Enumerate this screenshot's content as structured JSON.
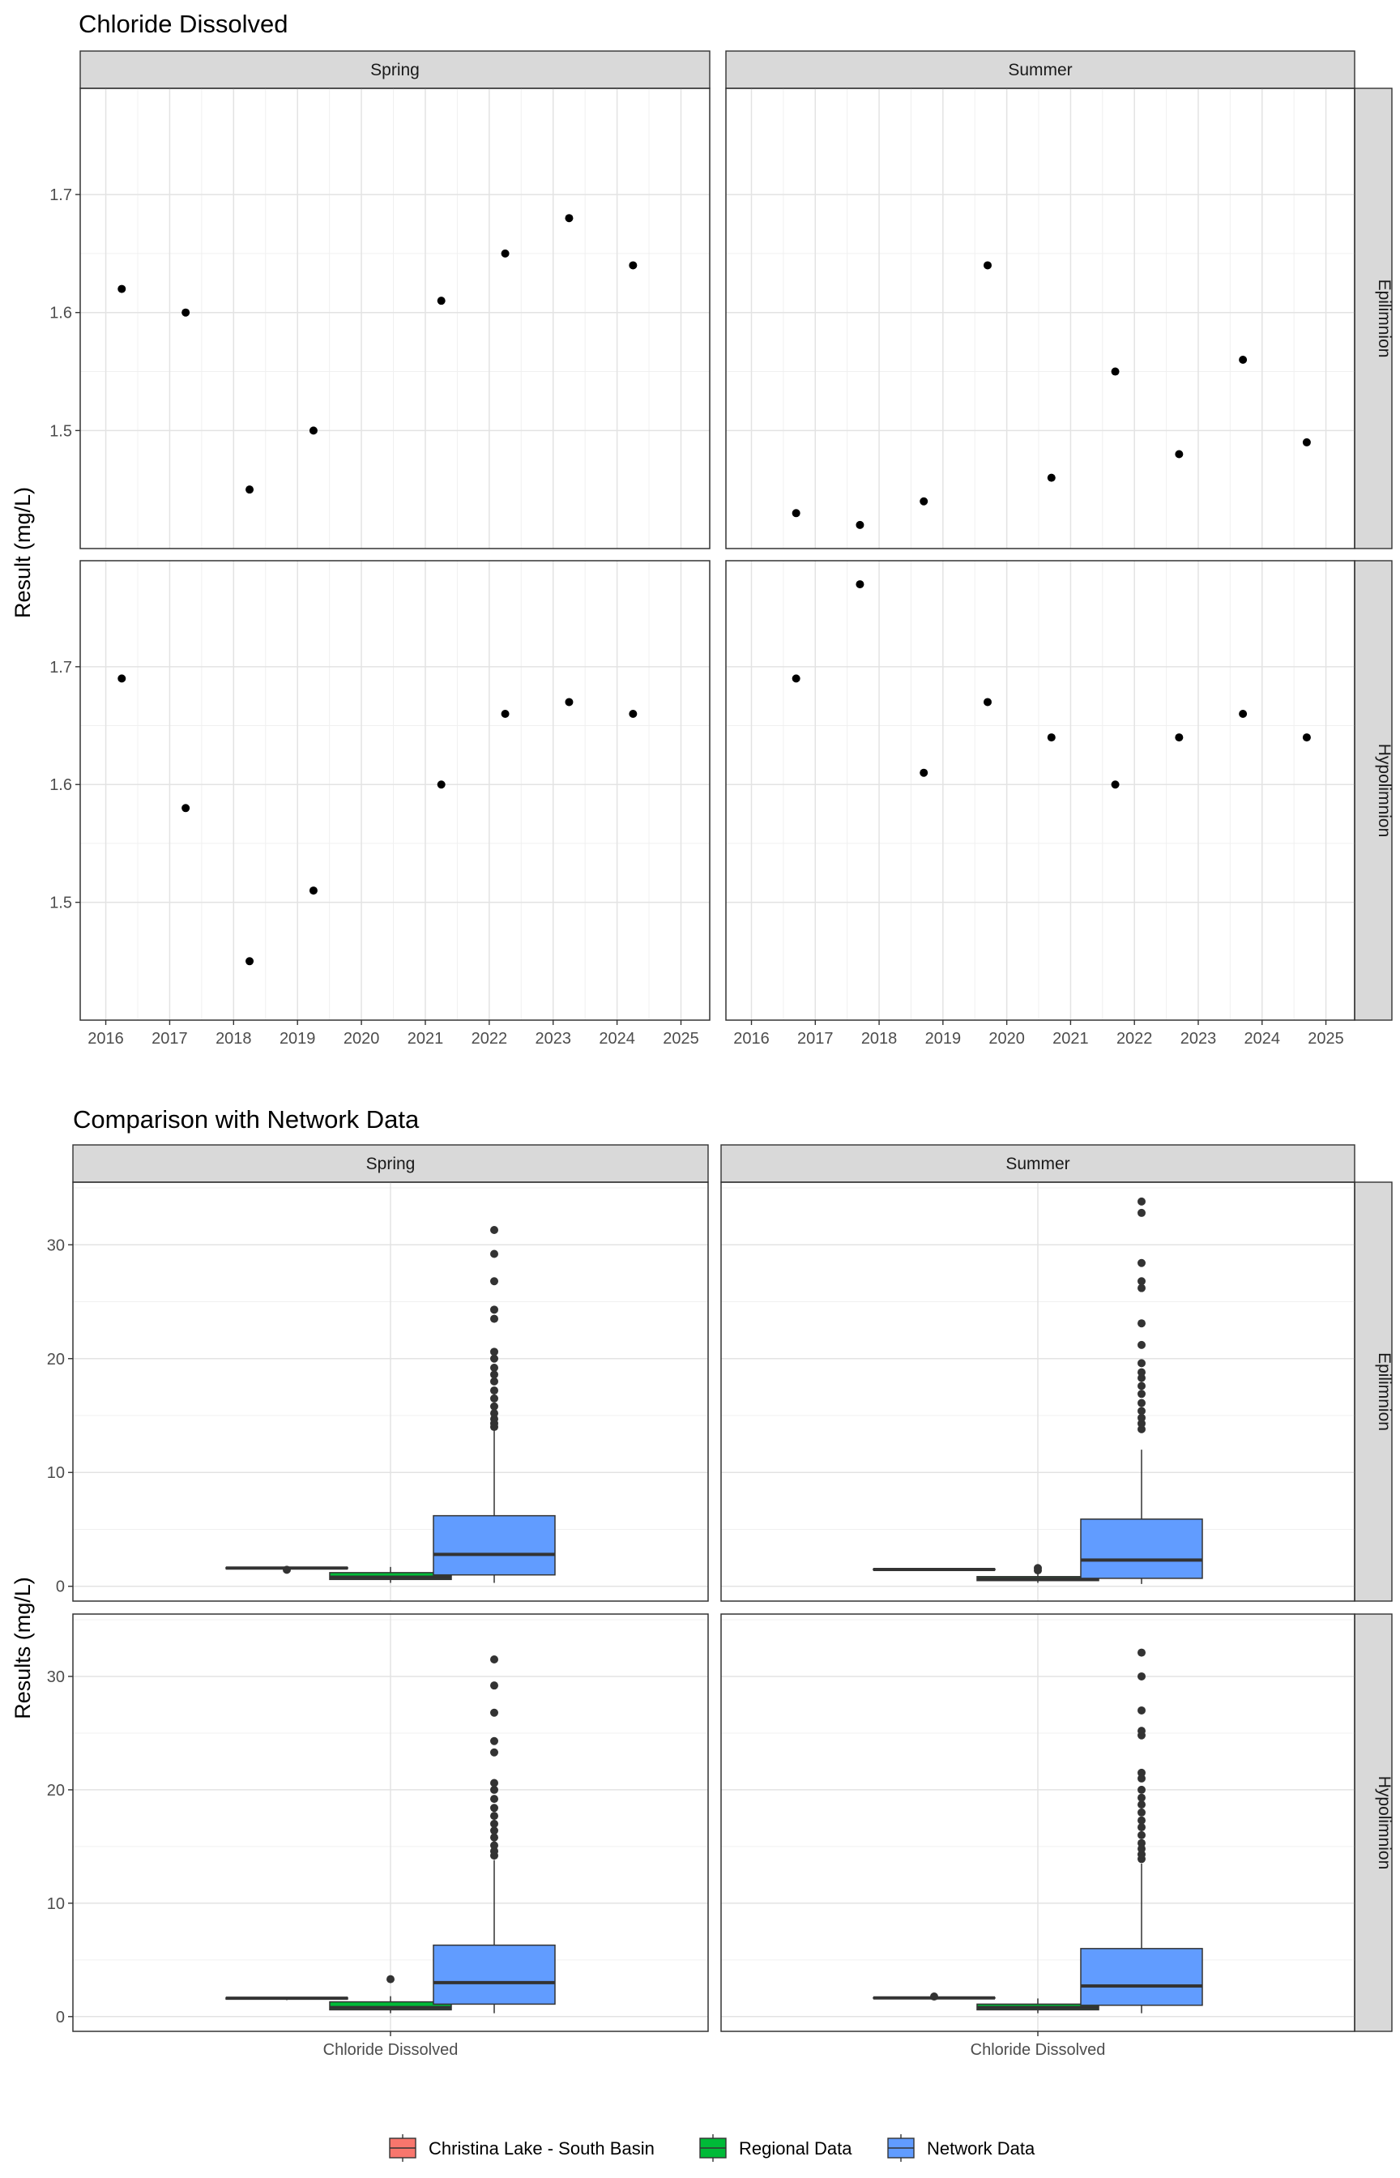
{
  "chart_data": [
    {
      "type": "scatter",
      "title": "Chloride Dissolved",
      "ylabel": "Result (mg/L)",
      "xlabel": "",
      "grid": true,
      "facet_columns": [
        "Spring",
        "Summer"
      ],
      "facet_rows": [
        "Epilimnion",
        "Hypolimnion"
      ],
      "x_ticks": [
        "2016",
        "2017",
        "2018",
        "2019",
        "2020",
        "2021",
        "2022",
        "2023",
        "2024",
        "2025"
      ],
      "xlim": [
        2015.6,
        2025.45
      ],
      "y_ticks": [
        "1.5",
        "1.6",
        "1.7"
      ],
      "ylim": [
        1.4,
        1.79
      ],
      "panels": [
        {
          "season": "Spring",
          "layer": "Epilimnion",
          "x": [
            2016.25,
            2017.25,
            2018.25,
            2019.25,
            2021.25,
            2022.25,
            2023.25,
            2024.25
          ],
          "y": [
            1.62,
            1.6,
            1.45,
            1.5,
            1.61,
            1.65,
            1.68,
            1.64
          ]
        },
        {
          "season": "Summer",
          "layer": "Epilimnion",
          "x": [
            2016.7,
            2017.7,
            2018.7,
            2019.7,
            2020.7,
            2021.7,
            2022.7,
            2023.7,
            2024.7
          ],
          "y": [
            1.43,
            1.42,
            1.44,
            1.64,
            1.46,
            1.55,
            1.48,
            1.56,
            1.49
          ]
        },
        {
          "season": "Spring",
          "layer": "Hypolimnion",
          "x": [
            2016.25,
            2017.25,
            2018.25,
            2019.25,
            2021.25,
            2022.25,
            2023.25,
            2024.25
          ],
          "y": [
            1.69,
            1.58,
            1.45,
            1.51,
            1.6,
            1.66,
            1.67,
            1.66
          ]
        },
        {
          "season": "Summer",
          "layer": "Hypolimnion",
          "x": [
            2016.7,
            2017.7,
            2018.7,
            2019.7,
            2020.7,
            2021.7,
            2022.7,
            2023.7,
            2024.7
          ],
          "y": [
            1.69,
            1.77,
            1.61,
            1.67,
            1.64,
            1.6,
            1.64,
            1.66,
            1.64
          ]
        }
      ]
    },
    {
      "type": "box",
      "title": "Comparison with Network Data",
      "ylabel": "Results (mg/L)",
      "xlabel": "",
      "grid": true,
      "category": "Chloride Dissolved",
      "facet_columns": [
        "Spring",
        "Summer"
      ],
      "facet_rows": [
        "Epilimnion",
        "Hypolimnion"
      ],
      "y_ticks": [
        "0",
        "10",
        "20",
        "30"
      ],
      "ylim": [
        -1.3,
        35.5
      ],
      "legend": {
        "position": "bottom",
        "entries": [
          {
            "label": "Christina Lake - South Basin",
            "color": "#f8766d"
          },
          {
            "label": "Regional Data",
            "color": "#00ba38"
          },
          {
            "label": "Network Data",
            "color": "#619cff"
          }
        ]
      },
      "panels": [
        {
          "season": "Spring",
          "layer": "Epilimnion",
          "series": [
            {
              "group": "Christina Lake - South Basin",
              "whisker_low": 1.5,
              "q1": 1.55,
              "median": 1.6,
              "q3": 1.65,
              "whisker_high": 1.68,
              "outliers": [
                1.45
              ]
            },
            {
              "group": "Regional Data",
              "whisker_low": 0.3,
              "q1": 0.6,
              "median": 0.8,
              "q3": 1.2,
              "whisker_high": 1.7,
              "outliers": []
            },
            {
              "group": "Network Data",
              "whisker_low": 0.3,
              "q1": 1.0,
              "median": 2.8,
              "q3": 6.2,
              "whisker_high": 13.8,
              "outliers": [
                14.0,
                14.3,
                14.7,
                15.2,
                15.8,
                16.5,
                17.2,
                18.0,
                18.6,
                19.2,
                20.0,
                20.6,
                23.5,
                24.3,
                26.8,
                29.2,
                31.3
              ]
            }
          ]
        },
        {
          "season": "Summer",
          "layer": "Epilimnion",
          "series": [
            {
              "group": "Christina Lake - South Basin",
              "whisker_low": 1.42,
              "q1": 1.44,
              "median": 1.48,
              "q3": 1.52,
              "whisker_high": 1.56,
              "outliers": []
            },
            {
              "group": "Regional Data",
              "whisker_low": 0.3,
              "q1": 0.5,
              "median": 0.65,
              "q3": 0.85,
              "whisker_high": 1.1,
              "outliers": [
                1.4,
                1.6
              ]
            },
            {
              "group": "Network Data",
              "whisker_low": 0.2,
              "q1": 0.7,
              "median": 2.3,
              "q3": 5.9,
              "whisker_high": 12.0,
              "outliers": [
                13.8,
                14.3,
                14.8,
                15.4,
                16.1,
                16.9,
                17.6,
                18.3,
                18.8,
                19.6,
                21.2,
                23.1,
                26.2,
                26.8,
                28.4,
                32.8,
                33.8
              ]
            }
          ]
        },
        {
          "season": "Spring",
          "layer": "Hypolimnion",
          "series": [
            {
              "group": "Christina Lake - South Basin",
              "whisker_low": 1.45,
              "q1": 1.55,
              "median": 1.62,
              "q3": 1.67,
              "whisker_high": 1.69,
              "outliers": []
            },
            {
              "group": "Regional Data",
              "whisker_low": 0.3,
              "q1": 0.6,
              "median": 0.8,
              "q3": 1.3,
              "whisker_high": 1.8,
              "outliers": [
                3.3
              ]
            },
            {
              "group": "Network Data",
              "whisker_low": 0.3,
              "q1": 1.1,
              "median": 3.0,
              "q3": 6.3,
              "whisker_high": 13.8,
              "outliers": [
                14.2,
                14.6,
                15.1,
                15.8,
                16.4,
                17.0,
                17.7,
                18.4,
                19.2,
                20.0,
                20.6,
                23.3,
                24.3,
                26.8,
                29.2,
                31.5
              ]
            }
          ]
        },
        {
          "season": "Summer",
          "layer": "Hypolimnion",
          "series": [
            {
              "group": "Christina Lake - South Basin",
              "whisker_low": 1.6,
              "q1": 1.63,
              "median": 1.65,
              "q3": 1.67,
              "whisker_high": 1.69,
              "outliers": [
                1.77
              ]
            },
            {
              "group": "Regional Data",
              "whisker_low": 0.3,
              "q1": 0.6,
              "median": 0.8,
              "q3": 1.1,
              "whisker_high": 1.6,
              "outliers": []
            },
            {
              "group": "Network Data",
              "whisker_low": 0.3,
              "q1": 1.0,
              "median": 2.7,
              "q3": 6.0,
              "whisker_high": 13.5,
              "outliers": [
                13.9,
                14.3,
                14.8,
                15.3,
                16.0,
                16.7,
                17.3,
                18.0,
                18.7,
                19.3,
                20.0,
                21.0,
                21.5,
                24.8,
                25.2,
                27.0,
                30.0,
                32.1
              ]
            }
          ]
        }
      ]
    }
  ]
}
